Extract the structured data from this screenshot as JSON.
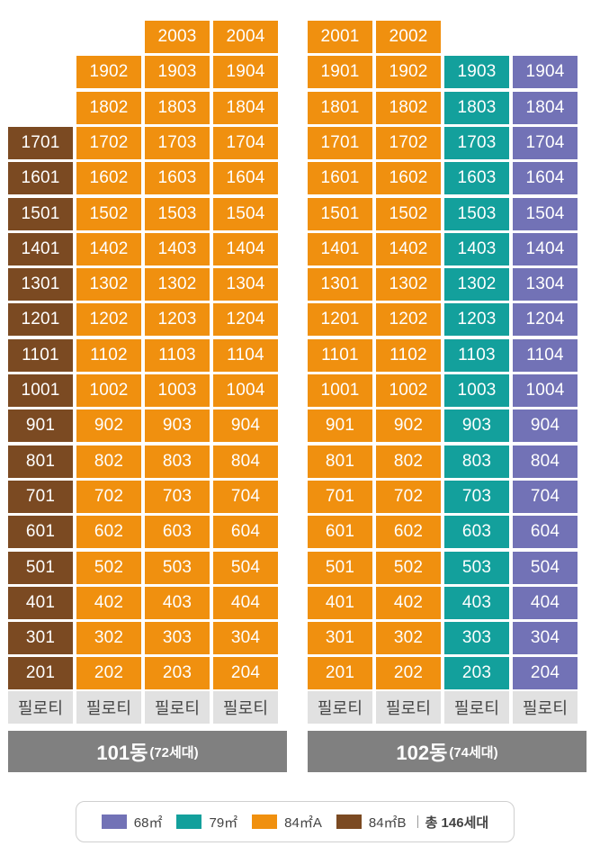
{
  "colors": {
    "t68": "#7272b6",
    "t79": "#13a09c",
    "t84A": "#f0900f",
    "t84B": "#7b4a22",
    "pilotis": "#e1e1e1",
    "banner": "#808080"
  },
  "pilotis_label": "필로티",
  "buildings": [
    {
      "name": "101동",
      "households": "(72세대)",
      "columns": [
        {
          "line": "01",
          "type": "84B",
          "top_floor": 17
        },
        {
          "line": "02",
          "type": "84A",
          "top_floor": 19
        },
        {
          "line": "03",
          "type": "84A",
          "top_floor": 20
        },
        {
          "line": "04",
          "type": "84A",
          "top_floor": 20
        }
      ]
    },
    {
      "name": "102동",
      "households": "(74세대)",
      "columns": [
        {
          "line": "01",
          "type": "84A",
          "top_floor": 20
        },
        {
          "line": "02",
          "type": "84A",
          "top_floor": 20
        },
        {
          "line": "03",
          "type": "79",
          "top_floor": 19
        },
        {
          "line": "04",
          "type": "68",
          "top_floor": 19
        }
      ]
    }
  ],
  "overrides": {
    "0-2-13": "1302",
    "1-2-13": "1302"
  },
  "legend": {
    "items": [
      {
        "type": "68",
        "label": "68㎡"
      },
      {
        "type": "79",
        "label": "79㎡"
      },
      {
        "type": "84A",
        "label": "84㎡A"
      },
      {
        "type": "84B",
        "label": "84㎡B"
      }
    ],
    "total": "총 146세대"
  }
}
